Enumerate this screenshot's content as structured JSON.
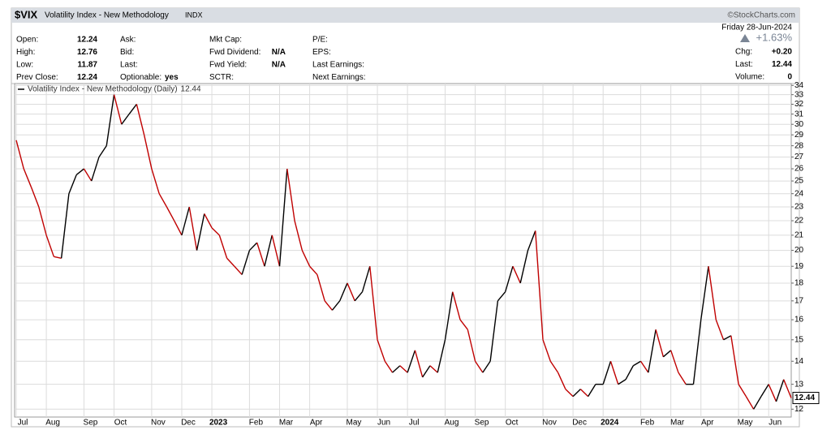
{
  "chart_data": {
    "type": "line",
    "header": {
      "symbol": "$VIX",
      "name": "Volatility Index - New Methodology",
      "exchange": "INDX",
      "copyright": "©StockCharts.com",
      "date": "Friday  28-Jun-2024",
      "change_pct": "+1.63%",
      "columns": [
        [
          {
            "label": "Open:",
            "value": "12.24"
          },
          {
            "label": "High:",
            "value": "12.76"
          },
          {
            "label": "Low:",
            "value": "11.87"
          },
          {
            "label": "Prev Close:",
            "value": "12.24"
          }
        ],
        [
          {
            "label": "Ask:",
            "value": ""
          },
          {
            "label": "Bid:",
            "value": ""
          },
          {
            "label": "Last:",
            "value": ""
          },
          {
            "label": "Optionable:",
            "value": "yes"
          }
        ],
        [
          {
            "label": "Mkt Cap:",
            "value": ""
          },
          {
            "label": "Fwd Dividend:",
            "value": "N/A"
          },
          {
            "label": "Fwd Yield:",
            "value": "N/A"
          },
          {
            "label": "SCTR:",
            "value": ""
          }
        ],
        [
          {
            "label": "P/E:",
            "value": ""
          },
          {
            "label": "EPS:",
            "value": ""
          },
          {
            "label": "Last Earnings:",
            "value": ""
          },
          {
            "label": "Next Earnings:",
            "value": ""
          }
        ]
      ],
      "right": [
        {
          "label": "Chg:",
          "value": "+0.20"
        },
        {
          "label": "Last:",
          "value": "12.44"
        },
        {
          "label": "Volume:",
          "value": "0"
        }
      ]
    },
    "categories": [
      "Jul",
      null,
      null,
      null,
      "Aug",
      null,
      null,
      null,
      null,
      "Sep",
      null,
      null,
      null,
      "Oct",
      null,
      null,
      null,
      null,
      "Nov",
      null,
      null,
      null,
      "Dec",
      null,
      null,
      null,
      "2023",
      null,
      null,
      null,
      null,
      "Feb",
      null,
      null,
      null,
      "Mar",
      null,
      null,
      null,
      "Apr",
      null,
      null,
      null,
      null,
      "May",
      null,
      null,
      null,
      "Jun",
      null,
      null,
      null,
      "Jul",
      null,
      null,
      null,
      null,
      "Aug",
      null,
      null,
      null,
      "Sep",
      null,
      null,
      null,
      "Oct",
      null,
      null,
      null,
      null,
      "Nov",
      null,
      null,
      null,
      "Dec",
      null,
      null,
      null,
      "2024",
      null,
      null,
      null,
      null,
      "Feb",
      null,
      null,
      null,
      "Mar",
      null,
      null,
      null,
      "Apr",
      null,
      null,
      null,
      null,
      "May",
      null,
      null,
      null,
      "Jun",
      null,
      null,
      null
    ],
    "series": [
      {
        "name": "Volatility Index - New Methodology (Daily)",
        "up_color": "#000000",
        "down_color": "#c00000",
        "values": [
          28.5,
          26,
          24.5,
          23,
          21,
          19.6,
          19.5,
          24,
          25.5,
          26,
          25,
          27,
          28,
          33,
          30,
          31,
          32,
          29,
          26,
          24,
          23,
          22,
          21,
          23,
          20,
          22.5,
          21.5,
          21,
          19.5,
          19,
          18.5,
          20,
          20.5,
          19,
          21,
          19,
          26,
          22,
          20,
          19,
          18.5,
          17,
          16.5,
          17,
          18,
          17,
          17.5,
          19,
          15,
          14,
          13.5,
          13.8,
          13.5,
          14.5,
          13.3,
          13.8,
          13.5,
          15,
          17.5,
          16,
          15.5,
          14,
          13.5,
          14,
          17,
          17.5,
          19,
          18,
          20,
          21.3,
          15,
          14,
          13.5,
          12.8,
          12.5,
          12.8,
          12.5,
          13,
          13,
          14,
          13,
          13.2,
          13.8,
          14,
          13.5,
          15.5,
          14.2,
          14.5,
          13.5,
          13,
          13,
          16,
          19,
          16,
          15,
          15.2,
          13,
          12.5,
          12,
          12.5,
          13,
          12.3,
          13.2,
          12.44
        ]
      }
    ],
    "ylim": [
      11.7,
      34.2
    ],
    "yticks": [
      12,
      13,
      14,
      15,
      16,
      17,
      18,
      19,
      20,
      21,
      22,
      23,
      24,
      25,
      26,
      27,
      28,
      29,
      30,
      31,
      32,
      33,
      34
    ],
    "log_scale": true,
    "grid": true
  }
}
